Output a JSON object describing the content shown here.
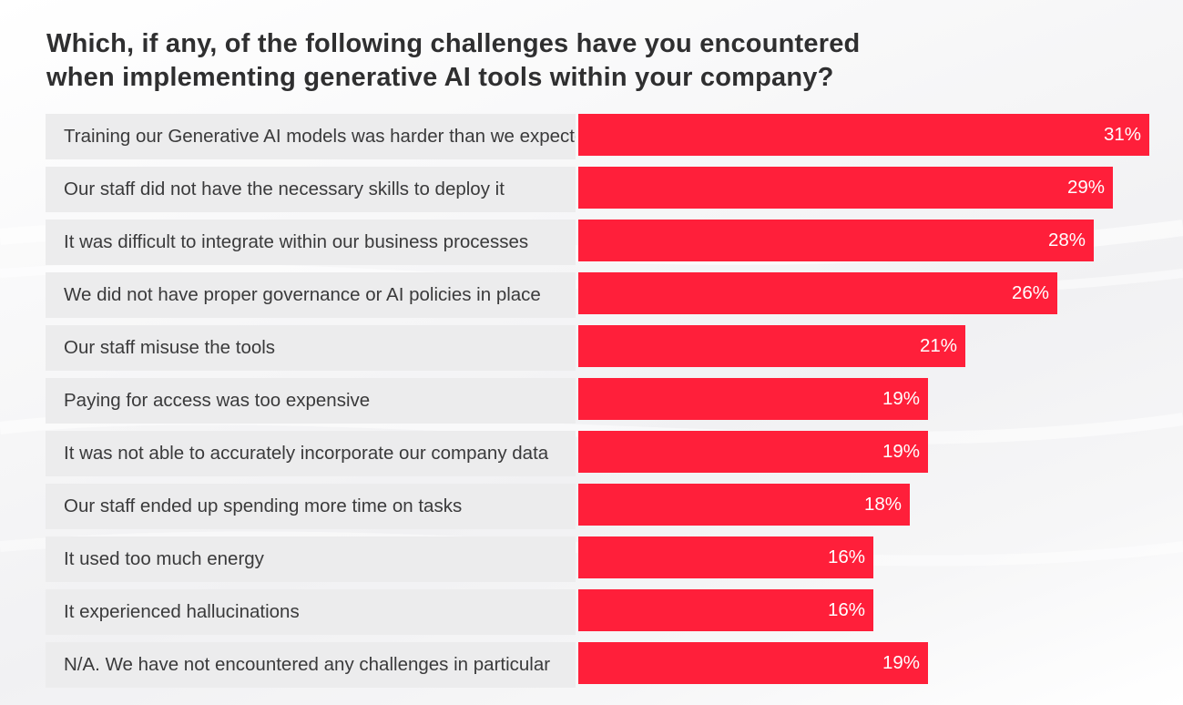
{
  "chart_data": {
    "type": "bar",
    "orientation": "horizontal",
    "title": "Which, if any, of the following challenges have you encountered when implementing generative AI tools within your company?",
    "title_lines": [
      "Which, if any, of the following challenges have you encountered",
      "when implementing generative AI tools within your company?"
    ],
    "categories": [
      "Training our Generative AI models was harder than we expected",
      "Our staff did not have the necessary skills to deploy it",
      "It was difficult to integrate within our business processes",
      "We did not have proper governance or AI policies in place",
      "Our staff misuse the tools",
      "Paying for access was too expensive",
      "It was not able to accurately incorporate our company data",
      "Our staff ended up spending more time on tasks",
      "It used too much energy",
      "It experienced hallucinations",
      "N/A. We have not encountered any challenges in particular"
    ],
    "values": [
      31,
      29,
      28,
      26,
      21,
      19,
      19,
      18,
      16,
      16,
      19
    ],
    "value_labels": [
      "31%",
      "29%",
      "28%",
      "26%",
      "21%",
      "19%",
      "19%",
      "18%",
      "16%",
      "16%",
      "19%"
    ],
    "unit": "%",
    "xlim": [
      0,
      31
    ],
    "grid": false,
    "legend": "none",
    "bar_color": "#ff1f3a",
    "label_background": "#ececed"
  }
}
